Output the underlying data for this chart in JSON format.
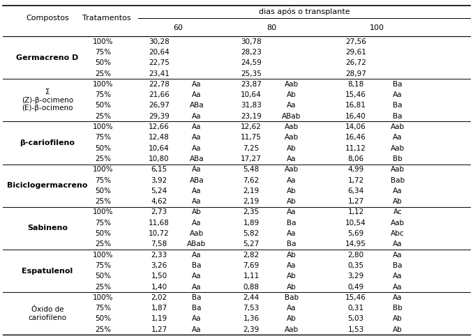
{
  "header_top": "dias após o transplante",
  "col_header1": "Compostos",
  "col_header2": "Tratamentos",
  "day_headers": [
    "60",
    "80",
    "100"
  ],
  "compostos": [
    {
      "name": "Germacreno D",
      "bold": true,
      "multiline": false,
      "rows": [
        [
          "100%",
          "30,28",
          "",
          "30,78",
          "",
          "27,56",
          ""
        ],
        [
          "75%",
          "20,64",
          "",
          "28,23",
          "",
          "29,61",
          ""
        ],
        [
          "50%",
          "22,75",
          "",
          "24,59",
          "",
          "26,72",
          ""
        ],
        [
          "25%",
          "23,41",
          "",
          "25,35",
          "",
          "28,97",
          ""
        ]
      ]
    },
    {
      "name": "Σ\n(Z)-β-ocimeno\n(E)-β-ocimeno",
      "bold": false,
      "multiline": true,
      "rows": [
        [
          "100%",
          "22,78",
          "Aa",
          "23,87",
          "Aab",
          "8,18",
          "Ba"
        ],
        [
          "75%",
          "21,66",
          "Aa",
          "10,64",
          "Ab",
          "15,46",
          "Aa"
        ],
        [
          "50%",
          "26,97",
          "ABa",
          "31,83",
          "Aa",
          "16,81",
          "Ba"
        ],
        [
          "25%",
          "29,39",
          "Aa",
          "23,19",
          "ABab",
          "16,40",
          "Ba"
        ]
      ]
    },
    {
      "name": "β-cariofileno",
      "bold": true,
      "multiline": false,
      "rows": [
        [
          "100%",
          "12,66",
          "Aa",
          "12,62",
          "Aab",
          "14,06",
          "Aab"
        ],
        [
          "75%",
          "12,48",
          "Aa",
          "11,75",
          "Aab",
          "16,46",
          "Aa"
        ],
        [
          "50%",
          "10,64",
          "Aa",
          "7,25",
          "Ab",
          "11,12",
          "Aab"
        ],
        [
          "25%",
          "10,80",
          "ABa",
          "17,27",
          "Aa",
          "8,06",
          "Bb"
        ]
      ]
    },
    {
      "name": "Biciclogermacreno",
      "bold": true,
      "multiline": false,
      "rows": [
        [
          "100%",
          "6,15",
          "Aa",
          "5,48",
          "Aab",
          "4,99",
          "Aab"
        ],
        [
          "75%",
          "3,92",
          "ABa",
          "7,62",
          "Aa",
          "1,72",
          "Bab"
        ],
        [
          "50%",
          "5,24",
          "Aa",
          "2,19",
          "Ab",
          "6,34",
          "Aa"
        ],
        [
          "25%",
          "4,62",
          "Aa",
          "2,19",
          "Ab",
          "1,27",
          "Ab"
        ]
      ]
    },
    {
      "name": "Sabineno",
      "bold": true,
      "multiline": false,
      "rows": [
        [
          "100%",
          "2,73",
          "Ab",
          "2,35",
          "Aa",
          "1,12",
          "Ac"
        ],
        [
          "75%",
          "11,68",
          "Aa",
          "1,89",
          "Ba",
          "10,54",
          "Aab"
        ],
        [
          "50%",
          "10,72",
          "Aab",
          "5,82",
          "Aa",
          "5,69",
          "Abc"
        ],
        [
          "25%",
          "7,58",
          "ABab",
          "5,27",
          "Ba",
          "14,95",
          "Aa"
        ]
      ]
    },
    {
      "name": "Espatulenol",
      "bold": true,
      "multiline": false,
      "rows": [
        [
          "100%",
          "2,33",
          "Aa",
          "2,82",
          "Ab",
          "2,80",
          "Aa"
        ],
        [
          "75%",
          "3,26",
          "Ba",
          "7,69",
          "Aa",
          "0,35",
          "Ba"
        ],
        [
          "50%",
          "1,50",
          "Aa",
          "1,11",
          "Ab",
          "3,29",
          "Aa"
        ],
        [
          "25%",
          "1,40",
          "Aa",
          "0,88",
          "Ab",
          "0,49",
          "Aa"
        ]
      ]
    },
    {
      "name": "Óxido de\ncariofileno",
      "bold": false,
      "multiline": true,
      "rows": [
        [
          "100%",
          "2,02",
          "Ba",
          "2,44",
          "Bab",
          "15,46",
          "Aa"
        ],
        [
          "75%",
          "1,87",
          "Ba",
          "7,53",
          "Aa",
          "0,31",
          "Bb"
        ],
        [
          "50%",
          "1,19",
          "Aa",
          "1,36",
          "Ab",
          "5,03",
          "Ab"
        ],
        [
          "25%",
          "1,27",
          "Aa",
          "2,39",
          "Aab",
          "1,53",
          "Ab"
        ]
      ]
    }
  ]
}
